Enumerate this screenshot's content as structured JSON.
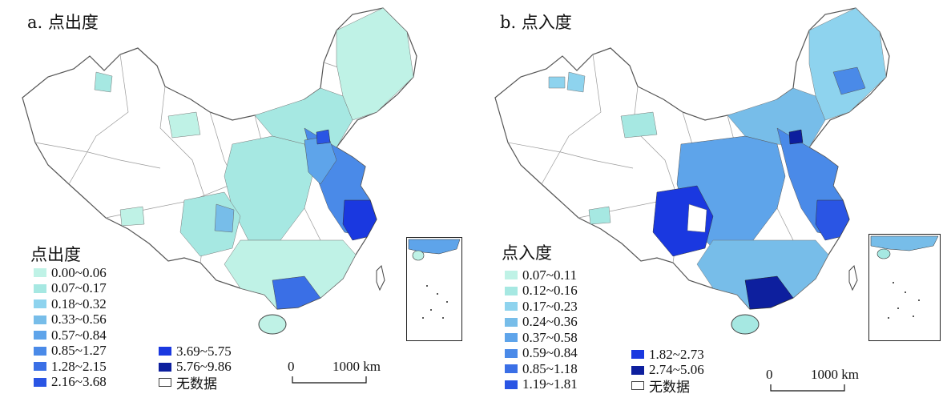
{
  "panels": [
    {
      "title": "a. 点出度",
      "legend_title": "点出度",
      "legend": [
        {
          "label": "0.00~0.06",
          "color": "#bff2e6"
        },
        {
          "label": "0.07~0.17",
          "color": "#a6e8e2"
        },
        {
          "label": "0.18~0.32",
          "color": "#8ed3ee"
        },
        {
          "label": "0.33~0.56",
          "color": "#77bde9"
        },
        {
          "label": "0.57~0.84",
          "color": "#5ea4ea"
        },
        {
          "label": "0.85~1.27",
          "color": "#4a8ae8"
        },
        {
          "label": "1.28~2.15",
          "color": "#3a6fe6"
        },
        {
          "label": "2.16~3.68",
          "color": "#2a55e4"
        },
        {
          "label": "3.69~5.75",
          "color": "#1a38e0"
        },
        {
          "label": "5.76~9.86",
          "color": "#0d1f9e"
        },
        {
          "label": "无数据",
          "color": "#ffffff",
          "nodata": true
        }
      ]
    },
    {
      "title": "b. 点入度",
      "legend_title": "点入度",
      "legend": [
        {
          "label": "0.07~0.11",
          "color": "#bff2e6"
        },
        {
          "label": "0.12~0.16",
          "color": "#a6e8e2"
        },
        {
          "label": "0.17~0.23",
          "color": "#8ed3ee"
        },
        {
          "label": "0.24~0.36",
          "color": "#77bde9"
        },
        {
          "label": "0.37~0.58",
          "color": "#5ea4ea"
        },
        {
          "label": "0.59~0.84",
          "color": "#4a8ae8"
        },
        {
          "label": "0.85~1.18",
          "color": "#3a6fe6"
        },
        {
          "label": "1.19~1.81",
          "color": "#2a55e4"
        },
        {
          "label": "1.82~2.73",
          "color": "#1a38e0"
        },
        {
          "label": "2.74~5.06",
          "color": "#0d1f9e"
        },
        {
          "label": "无数据",
          "color": "#ffffff",
          "nodata": true
        }
      ]
    }
  ],
  "scale": {
    "zero": "0",
    "distance": "1000 km"
  }
}
